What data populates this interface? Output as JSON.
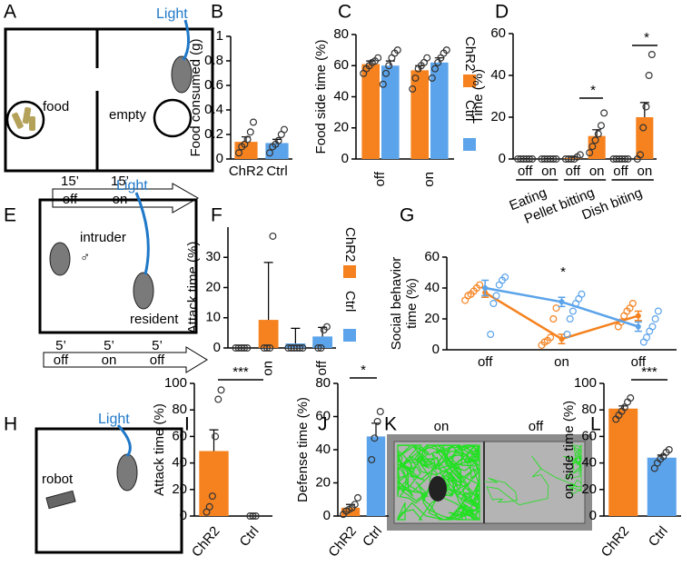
{
  "panels": [
    "A",
    "B",
    "C",
    "D",
    "E",
    "F",
    "G",
    "H",
    "I",
    "J",
    "K",
    "L"
  ],
  "diagrams": {
    "A": {
      "light": "Light",
      "food": "food",
      "empty": "empty",
      "durations": [
        "15’",
        "15’"
      ],
      "phases": [
        "off",
        "on"
      ]
    },
    "E": {
      "light": "Light",
      "intruder": "intruder",
      "sex": "♂",
      "resident": "resident",
      "durations": [
        "5’",
        "5’",
        "5’"
      ],
      "phases": [
        "off",
        "on",
        "off"
      ]
    },
    "H": {
      "light": "Light",
      "robot": "robot"
    },
    "K": {
      "labels": [
        "on",
        "off"
      ]
    }
  },
  "chart_data": [
    {
      "type": "bar",
      "ylabel": "Food consumed (g)",
      "categories": [
        "ChR2",
        "Ctrl"
      ],
      "values": [
        0.14,
        0.13
      ],
      "colors": [
        "#f5821f",
        "#5ba3ea"
      ],
      "errors": [
        0.04,
        0.03
      ],
      "points": [
        [
          0.05,
          0.1,
          0.12,
          0.16,
          0.22,
          0.3
        ],
        [
          0.05,
          0.1,
          0.12,
          0.15,
          0.2,
          0.24
        ]
      ],
      "ylim": [
        0,
        1
      ],
      "yticks": [
        0,
        0.2,
        0.4,
        0.6,
        0.8,
        1
      ]
    },
    {
      "type": "bar",
      "ylabel": "Food side time (%)",
      "categories": [
        "off",
        "on"
      ],
      "legend": true,
      "series": [
        {
          "name": "ChR2",
          "color": "#f5821f",
          "values": [
            61,
            57
          ],
          "errors": [
            2,
            3
          ],
          "points": [
            [
              55,
              58,
              60,
              62,
              63,
              65
            ],
            [
              45,
              52,
              58,
              60,
              62,
              65
            ]
          ]
        },
        {
          "name": "Ctrl",
          "color": "#5ba3ea",
          "values": [
            60,
            62
          ],
          "errors": [
            3,
            3
          ],
          "points": [
            [
              48,
              55,
              60,
              65,
              68,
              70
            ],
            [
              52,
              58,
              62,
              65,
              68,
              70
            ]
          ]
        }
      ],
      "ylim": [
        0,
        80
      ],
      "yticks": [
        0,
        20,
        40,
        60,
        80
      ]
    },
    {
      "type": "bar",
      "ylabel": "Time (%)",
      "categories": [
        "off",
        "on",
        "off",
        "on",
        "off",
        "on"
      ],
      "groups": [
        "Eating",
        "Pellet bitting",
        "Dish biting"
      ],
      "values": [
        0,
        0,
        0.5,
        11,
        0,
        20
      ],
      "color": "#f5821f",
      "errors": [
        0.2,
        0.2,
        0.4,
        3,
        0.2,
        7
      ],
      "points": [
        [
          0,
          0,
          0,
          0,
          0,
          0
        ],
        [
          0,
          0,
          0,
          0,
          0,
          0
        ],
        [
          0,
          0,
          0,
          0,
          1,
          2
        ],
        [
          3,
          6,
          9,
          12,
          16,
          22
        ],
        [
          0,
          0,
          0,
          0,
          0,
          0
        ],
        [
          0,
          2,
          15,
          25,
          40,
          50
        ]
      ],
      "annotations": [
        "*",
        "*"
      ],
      "ylim": [
        0,
        60
      ],
      "yticks": [
        0,
        20,
        40,
        60
      ]
    },
    {
      "type": "bar",
      "ylabel": "Attack time (%)",
      "categories": [
        null,
        "on",
        null,
        "off"
      ],
      "legend": true,
      "series": [
        {
          "name": "ChR2",
          "color": "#f5821f",
          "values": [
            0,
            9.3,
            null,
            null
          ],
          "errors": [
            0,
            19,
            null,
            null
          ],
          "points": [
            [
              0,
              0,
              0,
              0,
              0
            ],
            [
              0,
              0,
              0,
              37
            ],
            null,
            null
          ]
        },
        {
          "name": "Ctrl",
          "color": "#5ba3ea",
          "values": [
            null,
            null,
            1.5,
            3.8
          ],
          "errors": [
            null,
            null,
            5,
            3
          ],
          "points": [
            null,
            null,
            [
              0,
              0,
              0,
              0,
              0,
              0
            ],
            [
              0,
              0,
              6,
              7
            ]
          ]
        }
      ],
      "ylim": [
        0,
        40
      ],
      "yticks": [
        0,
        10,
        20,
        30
      ]
    },
    {
      "type": "line",
      "ylabel": [
        "Social behavior",
        "time (%)"
      ],
      "categories": [
        "off",
        "on",
        "off"
      ],
      "series": [
        {
          "name": "ChR2",
          "color": "#f5821f",
          "values": [
            37,
            7,
            22
          ],
          "errors": [
            3,
            3,
            3
          ],
          "points": [
            [
              32,
              35,
              36,
              38,
              40,
              42
            ],
            [
              3,
              5,
              6,
              8,
              20,
              27
            ],
            [
              15,
              18,
              22,
              25,
              27,
              30
            ]
          ]
        },
        {
          "name": "Ctrl",
          "color": "#5ba3ea",
          "values": [
            40,
            31,
            15
          ],
          "errors": [
            5,
            3,
            3
          ],
          "points": [
            [
              10,
              30,
              35,
              42,
              45,
              47
            ],
            [
              10,
              20,
              25,
              30,
              33,
              36
            ],
            [
              5,
              8,
              12,
              15,
              20,
              25
            ]
          ]
        }
      ],
      "annotations": [
        "*"
      ],
      "ylim": [
        0,
        60
      ],
      "yticks": [
        0,
        20,
        40,
        60
      ]
    },
    {
      "type": "bar",
      "ylabel": "Attack time (%)",
      "categories": [
        "ChR2",
        "Ctrl"
      ],
      "values": [
        49,
        0
      ],
      "colors": [
        "#f5821f",
        "#5ba3ea"
      ],
      "errors": [
        16,
        0
      ],
      "points": [
        [
          3,
          7,
          15,
          60,
          88,
          95
        ],
        [
          0,
          0,
          0
        ]
      ],
      "annotations": [
        "***"
      ],
      "ylim": [
        0,
        100
      ],
      "yticks": [
        0,
        20,
        40,
        60,
        80,
        100
      ]
    },
    {
      "type": "bar",
      "ylabel": "Defense time (%)",
      "categories": [
        "ChR2",
        "Ctrl"
      ],
      "values": [
        5,
        48
      ],
      "colors": [
        "#f5821f",
        "#5ba3ea"
      ],
      "errors": [
        2,
        8
      ],
      "points": [
        [
          1,
          3,
          4,
          5,
          7,
          11
        ],
        [
          34,
          47,
          57,
          63
        ]
      ],
      "annotations": [
        "*"
      ],
      "ylim": [
        0,
        80
      ],
      "yticks": [
        0,
        20,
        40,
        60,
        80
      ]
    },
    {
      "type": "bar",
      "ylabel": "on side time (%)",
      "categories": [
        "ChR2",
        "Ctrl"
      ],
      "values": [
        81,
        44
      ],
      "colors": [
        "#f5821f",
        "#5ba3ea"
      ],
      "errors": [
        2,
        2
      ],
      "points": [
        [
          73,
          76,
          79,
          82,
          86,
          89
        ],
        [
          36,
          40,
          43,
          45,
          48,
          50
        ]
      ],
      "annotations": [
        "***"
      ],
      "ylim": [
        0,
        100
      ],
      "yticks": [
        0,
        20,
        40,
        60,
        80,
        100
      ]
    }
  ]
}
